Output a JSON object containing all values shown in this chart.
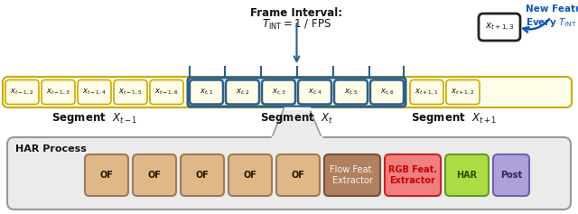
{
  "fig_width": 6.4,
  "fig_height": 2.37,
  "bg_color": "#ffffff",
  "timeline_bg": "#fffde7",
  "timeline_border": "#ccaa00",
  "frame_box_bg": "#fffde7",
  "frame_box_border": "#ccaa00",
  "segment_t_border": "#2c5f8a",
  "segment_t_bg": "#fffde7",
  "frames_t_minus1": [
    "x_{t-1,2}",
    "x_{t-1,3}",
    "x_{t-1,4}",
    "x_{t-1,5}",
    "x_{t-1,6}"
  ],
  "frames_t": [
    "x_{t,1}",
    "x_{t,2}",
    "x_{t,3}",
    "x_{t,4}",
    "x_{t,5}",
    "x_{t,6}"
  ],
  "frames_t_plus1": [
    "x_{t+1,1}",
    "x_{t+1,2}"
  ],
  "frame_next": "x_{t+1,3}",
  "segment_labels": [
    "Segment  $X_{t-1}$",
    "Segment  $X_t$",
    "Segment  $X_{t+1}$"
  ],
  "frame_interval_title": "Frame Interval:",
  "frame_interval_eq": "$T_{\\mathrm{INT}} = 1~/~\\mathrm{FPS}$",
  "new_feature_line1": "New Feature",
  "new_feature_line2": "Every $T_{\\mathrm{INT}}$",
  "har_process_label": "HAR Process",
  "process_boxes": [
    {
      "label": "OF",
      "color": "#deb887",
      "border": "#a0785a",
      "textcolor": "#2a1000",
      "bold": true
    },
    {
      "label": "OF",
      "color": "#deb887",
      "border": "#a0785a",
      "textcolor": "#2a1000",
      "bold": true
    },
    {
      "label": "OF",
      "color": "#deb887",
      "border": "#a0785a",
      "textcolor": "#2a1000",
      "bold": true
    },
    {
      "label": "OF",
      "color": "#deb887",
      "border": "#a0785a",
      "textcolor": "#2a1000",
      "bold": true
    },
    {
      "label": "OF",
      "color": "#deb887",
      "border": "#a0785a",
      "textcolor": "#2a1000",
      "bold": true
    },
    {
      "label": "Flow Feat.\nExtractor",
      "color": "#b08060",
      "border": "#7a5030",
      "textcolor": "#f5f5f5",
      "bold": false
    },
    {
      "label": "RGB Feat.\nExtractor",
      "color": "#f08080",
      "border": "#cc2222",
      "textcolor": "#cc0000",
      "bold": true
    },
    {
      "label": "HAR",
      "color": "#aadd44",
      "border": "#669922",
      "textcolor": "#2a5000",
      "bold": true
    },
    {
      "label": "Post",
      "color": "#b0a0d8",
      "border": "#7060b0",
      "textcolor": "#302060",
      "bold": true
    }
  ]
}
